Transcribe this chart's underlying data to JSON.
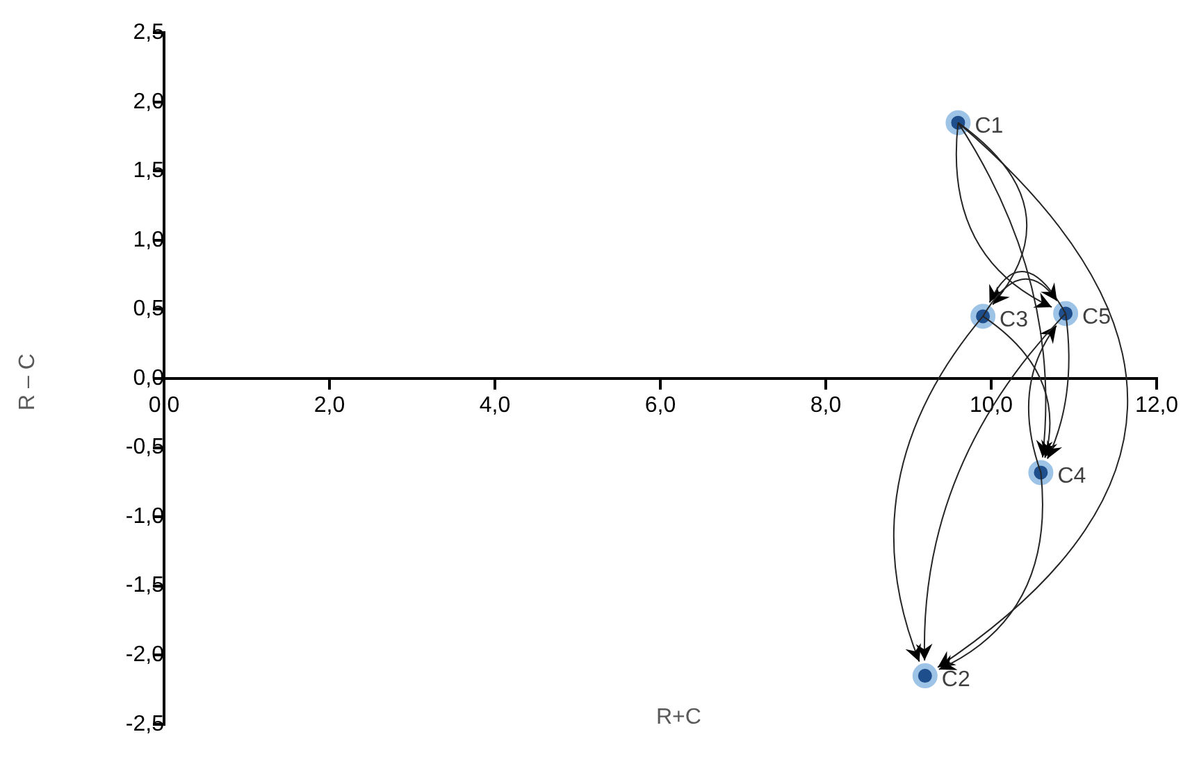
{
  "chart_data": {
    "type": "scatter",
    "xlabel": "R+C",
    "ylabel": "R – C",
    "xlim": [
      0,
      12
    ],
    "ylim": [
      -2.5,
      2.5
    ],
    "xticks": [
      {
        "value": 0,
        "label": "0,0"
      },
      {
        "value": 2,
        "label": "2,0"
      },
      {
        "value": 4,
        "label": "4,0"
      },
      {
        "value": 6,
        "label": "6,0"
      },
      {
        "value": 8,
        "label": "8,0"
      },
      {
        "value": 10,
        "label": "10,0"
      },
      {
        "value": 12,
        "label": "12,0"
      }
    ],
    "yticks": [
      {
        "value": -2.5,
        "label": "-2,5"
      },
      {
        "value": -2,
        "label": "-2,0"
      },
      {
        "value": -1.5,
        "label": "-1,5"
      },
      {
        "value": -1,
        "label": "-1,0"
      },
      {
        "value": -0.5,
        "label": "-0,5"
      },
      {
        "value": 0,
        "label": "0,0"
      },
      {
        "value": 0.5,
        "label": "0,5"
      },
      {
        "value": 1,
        "label": "1,0"
      },
      {
        "value": 1.5,
        "label": "1,5"
      },
      {
        "value": 2,
        "label": "2,0"
      },
      {
        "value": 2.5,
        "label": "2,5"
      }
    ],
    "series": [
      {
        "color": "#1f4e8c",
        "x": [
          9.6,
          9.2,
          9.9,
          10.6,
          10.9
        ],
        "values": [
          1.85,
          -2.15,
          0.45,
          -0.68,
          0.47
        ],
        "value_labels": [
          "C1",
          "C2",
          "C3",
          "C4",
          "C5"
        ]
      }
    ],
    "grid": false,
    "legend": false,
    "marker": "circle"
  }
}
